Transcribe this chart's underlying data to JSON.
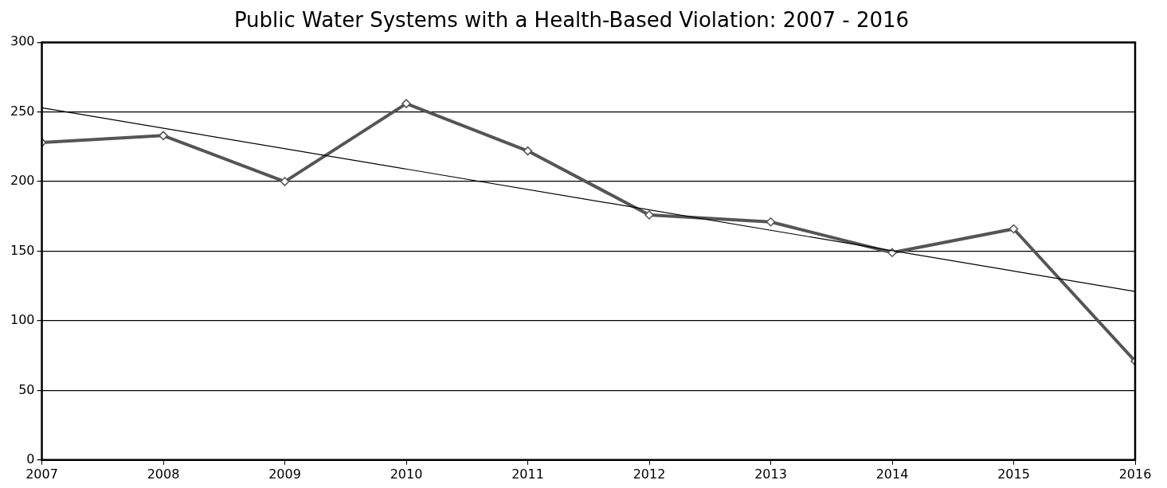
{
  "chart_data": {
    "type": "line",
    "title": "Public Water Systems with a Health-Based Violation: 2007 - 2016",
    "x": [
      2007,
      2008,
      2009,
      2010,
      2011,
      2012,
      2013,
      2014,
      2015,
      2016
    ],
    "series": [
      {
        "color": "#555555",
        "marker": "diamond",
        "values": [
          228,
          233,
          200,
          256,
          222,
          176,
          171,
          149,
          166,
          71
        ]
      },
      {
        "type": "line",
        "color": "#000000",
        "marker": "none",
        "x": [
          2007,
          2016
        ],
        "values": [
          253,
          121
        ]
      }
    ],
    "xlim": [
      2007,
      2016
    ],
    "xticks": [
      2007,
      2008,
      2009,
      2010,
      2011,
      2012,
      2013,
      2014,
      2015,
      2016
    ],
    "ylim": [
      0,
      300
    ],
    "yticks": [
      0,
      50,
      100,
      150,
      200,
      250,
      300
    ],
    "grid": "y",
    "legend": false
  }
}
